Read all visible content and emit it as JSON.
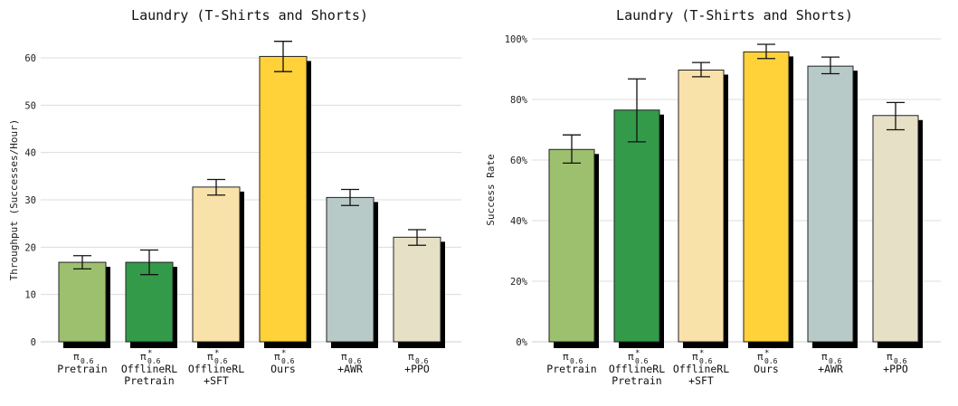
{
  "colors": {
    "pretrain": "#9DC06F",
    "offlinerl_pretrain": "#339A4A",
    "offlinerl_sft": "#F9E2A9",
    "ours": "#FFD23A",
    "awr": "#B8CAC8",
    "ppo": "#E6E0C6"
  },
  "chart_data": [
    {
      "type": "bar",
      "title": "Laundry (T-Shirts and Shorts)",
      "xlabel": "",
      "ylabel": "Throughput (Successes/Hour)",
      "ylim": [
        0,
        65
      ],
      "yticks": [
        "0",
        "10",
        "20",
        "30",
        "40",
        "50",
        "60"
      ],
      "ytick_values": [
        0,
        10,
        20,
        30,
        40,
        50,
        60
      ],
      "grid": true,
      "categories": [
        {
          "symbol": "π",
          "star": "",
          "sub": "0.6",
          "lines": [
            "Pretrain"
          ],
          "color_key": "pretrain"
        },
        {
          "symbol": "π",
          "star": "*",
          "sub": "0.6",
          "lines": [
            "OfflineRL",
            "Pretrain"
          ],
          "color_key": "offlinerl_pretrain"
        },
        {
          "symbol": "π",
          "star": "*",
          "sub": "0.6",
          "lines": [
            "OfflineRL",
            "+SFT"
          ],
          "color_key": "offlinerl_sft"
        },
        {
          "symbol": "π",
          "star": "*",
          "sub": "0.6",
          "lines": [
            "Ours"
          ],
          "color_key": "ours"
        },
        {
          "symbol": "π",
          "star": "",
          "sub": "0.6",
          "lines": [
            "+AWR"
          ],
          "color_key": "awr"
        },
        {
          "symbol": "π",
          "star": "",
          "sub": "0.6",
          "lines": [
            "+PPO"
          ],
          "color_key": "ppo"
        }
      ],
      "values": [
        16.8,
        16.8,
        32.7,
        60.3,
        30.5,
        22.1
      ],
      "err_low": [
        15.4,
        14.2,
        31.0,
        57.1,
        28.8,
        20.4
      ],
      "err_high": [
        18.2,
        19.4,
        34.3,
        63.5,
        32.2,
        23.7
      ]
    },
    {
      "type": "bar",
      "title": "Laundry (T-Shirts and Shorts)",
      "xlabel": "",
      "ylabel": "Success Rate",
      "ylim": [
        0,
        1.0
      ],
      "yticks": [
        "0%",
        "20%",
        "40%",
        "60%",
        "80%",
        "100%"
      ],
      "ytick_values": [
        0,
        0.2,
        0.4,
        0.6,
        0.8,
        1.0
      ],
      "grid": true,
      "categories": [
        {
          "symbol": "π",
          "star": "",
          "sub": "0.6",
          "lines": [
            "Pretrain"
          ],
          "color_key": "pretrain"
        },
        {
          "symbol": "π",
          "star": "*",
          "sub": "0.6",
          "lines": [
            "OfflineRL",
            "Pretrain"
          ],
          "color_key": "offlinerl_pretrain"
        },
        {
          "symbol": "π",
          "star": "*",
          "sub": "0.6",
          "lines": [
            "OfflineRL",
            "+SFT"
          ],
          "color_key": "offlinerl_sft"
        },
        {
          "symbol": "π",
          "star": "*",
          "sub": "0.6",
          "lines": [
            "Ours"
          ],
          "color_key": "ours"
        },
        {
          "symbol": "π",
          "star": "",
          "sub": "0.6",
          "lines": [
            "+AWR"
          ],
          "color_key": "awr"
        },
        {
          "symbol": "π",
          "star": "",
          "sub": "0.6",
          "lines": [
            "+PPO"
          ],
          "color_key": "ppo"
        }
      ],
      "values": [
        0.635,
        0.765,
        0.897,
        0.957,
        0.91,
        0.747
      ],
      "err_low": [
        0.59,
        0.66,
        0.875,
        0.935,
        0.885,
        0.7
      ],
      "err_high": [
        0.683,
        0.868,
        0.922,
        0.982,
        0.94,
        0.79
      ]
    }
  ]
}
